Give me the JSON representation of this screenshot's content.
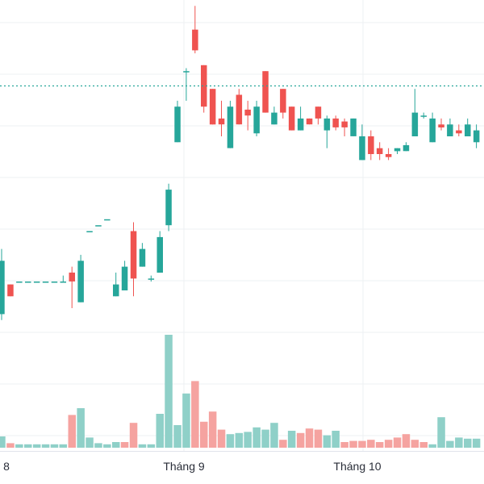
{
  "chart_data": {
    "type": "candlestick",
    "title": "",
    "xlabel": "",
    "ylabel": "",
    "x_tick_labels": [
      "8",
      "Tháng 9",
      "Tháng 10"
    ],
    "colors": {
      "up": "#26a69a",
      "down": "#ef5350",
      "up_volume": "#8fd0c8",
      "down_volume": "#f5a3a0",
      "grid": "#eef0f3",
      "last_price_line": "#26a69a"
    },
    "grid": true,
    "last_price_line": 100.5,
    "ylim": [
      40,
      115
    ],
    "volume_max": 100,
    "candles": [
      {
        "x": 0,
        "o": 62,
        "h": 73,
        "l": 61,
        "c": 71
      },
      {
        "x": 1,
        "o": 67,
        "h": 67,
        "l": 65,
        "c": 65
      },
      {
        "x": 2,
        "o": 67.5,
        "h": 67.5,
        "l": 67.5,
        "c": 67.5
      },
      {
        "x": 3,
        "o": 67.5,
        "h": 67.5,
        "l": 67.5,
        "c": 67.5
      },
      {
        "x": 4,
        "o": 67.5,
        "h": 67.5,
        "l": 67.5,
        "c": 67.5
      },
      {
        "x": 5,
        "o": 67.5,
        "h": 67.5,
        "l": 67.5,
        "c": 67.5
      },
      {
        "x": 6,
        "o": 67.5,
        "h": 67.5,
        "l": 67.5,
        "c": 67.5
      },
      {
        "x": 7,
        "o": 67.5,
        "h": 68.5,
        "l": 67.5,
        "c": 67.5
      },
      {
        "x": 8,
        "o": 69,
        "h": 70,
        "l": 63,
        "c": 67.5
      },
      {
        "x": 9,
        "o": 64,
        "h": 72,
        "l": 64,
        "c": 71
      },
      {
        "x": 10,
        "o": 76,
        "h": 76,
        "l": 76,
        "c": 76
      },
      {
        "x": 11,
        "o": 77,
        "h": 77,
        "l": 77,
        "c": 77
      },
      {
        "x": 12,
        "o": 78,
        "h": 78,
        "l": 78,
        "c": 78
      },
      {
        "x": 13,
        "o": 65,
        "h": 69,
        "l": 65,
        "c": 67
      },
      {
        "x": 14,
        "o": 66,
        "h": 71,
        "l": 66,
        "c": 70
      },
      {
        "x": 15,
        "o": 76,
        "h": 77.5,
        "l": 65,
        "c": 68
      },
      {
        "x": 16,
        "o": 70,
        "h": 74,
        "l": 70,
        "c": 73
      },
      {
        "x": 17,
        "o": 68,
        "h": 68.5,
        "l": 67.5,
        "c": 68
      },
      {
        "x": 18,
        "o": 69,
        "h": 76,
        "l": 69,
        "c": 75
      },
      {
        "x": 19,
        "o": 77,
        "h": 84,
        "l": 76,
        "c": 83
      },
      {
        "x": 20,
        "o": 91,
        "h": 98,
        "l": 91,
        "c": 97
      },
      {
        "x": 21,
        "o": 103,
        "h": 103.5,
        "l": 98,
        "c": 103
      },
      {
        "x": 22,
        "o": 110,
        "h": 114,
        "l": 106,
        "c": 106.5
      },
      {
        "x": 23,
        "o": 104,
        "h": 104,
        "l": 96,
        "c": 97
      },
      {
        "x": 24,
        "o": 100,
        "h": 100,
        "l": 94,
        "c": 94
      },
      {
        "x": 25,
        "o": 95,
        "h": 98,
        "l": 92,
        "c": 94
      },
      {
        "x": 26,
        "o": 90,
        "h": 98,
        "l": 90,
        "c": 97
      },
      {
        "x": 27,
        "o": 99,
        "h": 100,
        "l": 94,
        "c": 94
      },
      {
        "x": 28,
        "o": 96.5,
        "h": 98,
        "l": 93,
        "c": 95.5
      },
      {
        "x": 29,
        "o": 92.5,
        "h": 98,
        "l": 92,
        "c": 97
      },
      {
        "x": 30,
        "o": 103,
        "h": 103,
        "l": 96,
        "c": 96
      },
      {
        "x": 31,
        "o": 94,
        "h": 97,
        "l": 94,
        "c": 96
      },
      {
        "x": 32,
        "o": 100,
        "h": 100,
        "l": 95,
        "c": 96
      },
      {
        "x": 33,
        "o": 97,
        "h": 97,
        "l": 93,
        "c": 93
      },
      {
        "x": 34,
        "o": 93,
        "h": 97,
        "l": 93,
        "c": 95
      },
      {
        "x": 35,
        "o": 95,
        "h": 95,
        "l": 94,
        "c": 94
      },
      {
        "x": 36,
        "o": 97,
        "h": 97,
        "l": 94,
        "c": 95
      },
      {
        "x": 37,
        "o": 93,
        "h": 95.5,
        "l": 90,
        "c": 95
      },
      {
        "x": 38,
        "o": 95,
        "h": 95.5,
        "l": 93,
        "c": 93.5
      },
      {
        "x": 39,
        "o": 94.5,
        "h": 95,
        "l": 92,
        "c": 93.5
      },
      {
        "x": 40,
        "o": 92,
        "h": 95,
        "l": 92,
        "c": 95
      },
      {
        "x": 41,
        "o": 88,
        "h": 94,
        "l": 88,
        "c": 92
      },
      {
        "x": 42,
        "o": 92,
        "h": 93,
        "l": 88,
        "c": 89
      },
      {
        "x": 43,
        "o": 90,
        "h": 91,
        "l": 88,
        "c": 89
      },
      {
        "x": 44,
        "o": 89,
        "h": 90,
        "l": 88,
        "c": 88.5
      },
      {
        "x": 45,
        "o": 89.5,
        "h": 90,
        "l": 89,
        "c": 90
      },
      {
        "x": 46,
        "o": 89.5,
        "h": 91,
        "l": 89.5,
        "c": 90.5
      },
      {
        "x": 47,
        "o": 92,
        "h": 100,
        "l": 92,
        "c": 96
      },
      {
        "x": 48,
        "o": 95.5,
        "h": 96,
        "l": 95,
        "c": 95.5
      },
      {
        "x": 49,
        "o": 91,
        "h": 96,
        "l": 91,
        "c": 95
      },
      {
        "x": 50,
        "o": 94,
        "h": 95,
        "l": 93,
        "c": 93.5
      },
      {
        "x": 51,
        "o": 92,
        "h": 95,
        "l": 92,
        "c": 94
      },
      {
        "x": 52,
        "o": 93,
        "h": 94,
        "l": 92,
        "c": 92.5
      },
      {
        "x": 53,
        "o": 92,
        "h": 95,
        "l": 92,
        "c": 94
      },
      {
        "x": 54,
        "o": 91,
        "h": 94,
        "l": 90,
        "c": 93
      }
    ],
    "volume": [
      {
        "x": 0,
        "v": 10,
        "up": true
      },
      {
        "x": 1,
        "v": 4,
        "up": false
      },
      {
        "x": 2,
        "v": 3,
        "up": true
      },
      {
        "x": 3,
        "v": 3,
        "up": true
      },
      {
        "x": 4,
        "v": 3,
        "up": true
      },
      {
        "x": 5,
        "v": 3,
        "up": true
      },
      {
        "x": 6,
        "v": 3,
        "up": true
      },
      {
        "x": 7,
        "v": 3,
        "up": true
      },
      {
        "x": 8,
        "v": 29,
        "up": false
      },
      {
        "x": 9,
        "v": 35,
        "up": true
      },
      {
        "x": 10,
        "v": 9,
        "up": true
      },
      {
        "x": 11,
        "v": 4,
        "up": true
      },
      {
        "x": 12,
        "v": 3,
        "up": true
      },
      {
        "x": 13,
        "v": 5,
        "up": true
      },
      {
        "x": 14,
        "v": 5,
        "up": false
      },
      {
        "x": 15,
        "v": 22,
        "up": false
      },
      {
        "x": 16,
        "v": 3,
        "up": true
      },
      {
        "x": 17,
        "v": 3,
        "up": true
      },
      {
        "x": 18,
        "v": 30,
        "up": true
      },
      {
        "x": 19,
        "v": 100,
        "up": true
      },
      {
        "x": 20,
        "v": 20,
        "up": true
      },
      {
        "x": 21,
        "v": 48,
        "up": true
      },
      {
        "x": 22,
        "v": 59,
        "up": false
      },
      {
        "x": 23,
        "v": 23,
        "up": false
      },
      {
        "x": 24,
        "v": 32,
        "up": false
      },
      {
        "x": 25,
        "v": 16,
        "up": false
      },
      {
        "x": 26,
        "v": 12,
        "up": true
      },
      {
        "x": 27,
        "v": 13,
        "up": true
      },
      {
        "x": 28,
        "v": 14,
        "up": true
      },
      {
        "x": 29,
        "v": 18,
        "up": true
      },
      {
        "x": 30,
        "v": 16,
        "up": true
      },
      {
        "x": 31,
        "v": 22,
        "up": true
      },
      {
        "x": 32,
        "v": 7,
        "up": false
      },
      {
        "x": 33,
        "v": 15,
        "up": true
      },
      {
        "x": 34,
        "v": 13,
        "up": false
      },
      {
        "x": 35,
        "v": 17,
        "up": false
      },
      {
        "x": 36,
        "v": 16,
        "up": false
      },
      {
        "x": 37,
        "v": 11,
        "up": true
      },
      {
        "x": 38,
        "v": 15,
        "up": true
      },
      {
        "x": 39,
        "v": 5,
        "up": false
      },
      {
        "x": 40,
        "v": 6,
        "up": false
      },
      {
        "x": 41,
        "v": 6,
        "up": false
      },
      {
        "x": 42,
        "v": 7,
        "up": false
      },
      {
        "x": 43,
        "v": 5,
        "up": false
      },
      {
        "x": 44,
        "v": 7,
        "up": false
      },
      {
        "x": 45,
        "v": 9,
        "up": false
      },
      {
        "x": 46,
        "v": 12,
        "up": false
      },
      {
        "x": 47,
        "v": 7,
        "up": false
      },
      {
        "x": 48,
        "v": 5,
        "up": false
      },
      {
        "x": 49,
        "v": 3,
        "up": true
      },
      {
        "x": 50,
        "v": 27,
        "up": true
      },
      {
        "x": 51,
        "v": 6,
        "up": true
      },
      {
        "x": 52,
        "v": 9,
        "up": true
      },
      {
        "x": 53,
        "v": 8,
        "up": true
      },
      {
        "x": 54,
        "v": 8,
        "up": true
      }
    ]
  }
}
